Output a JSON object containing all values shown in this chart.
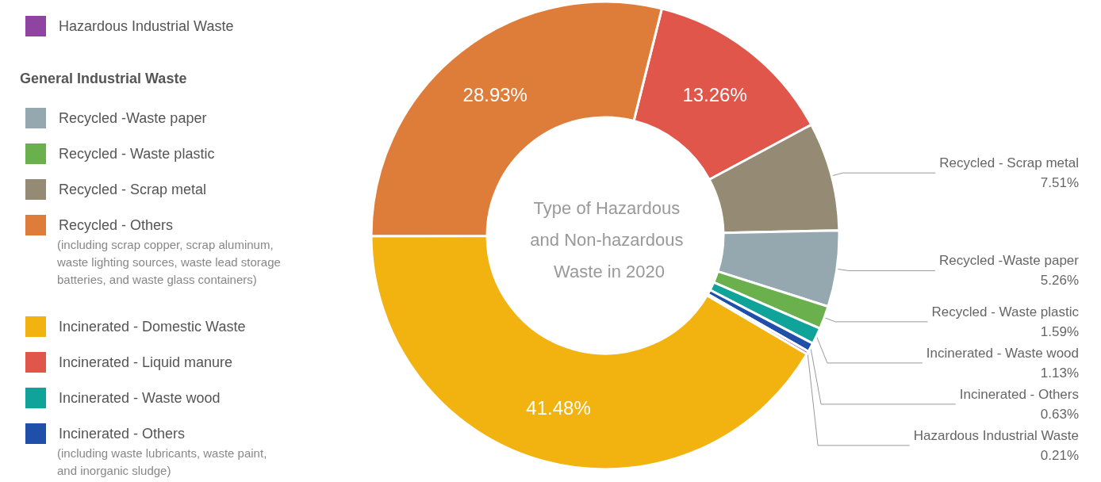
{
  "chart_data": {
    "type": "donut",
    "title": "Type of Hazardous and Non-hazardous Waste in 2020",
    "legend_title": "General Industrial Waste",
    "categories": [
      "Incinerated - Liquid manure",
      "Recycled - Scrap metal",
      "Recycled -Waste paper",
      "Recycled - Waste plastic",
      "Incinerated - Waste wood",
      "Incinerated - Others",
      "Hazardous Industrial Waste",
      "Incinerated - Domestic Waste",
      "Recycled - Others"
    ],
    "values": [
      13.26,
      7.51,
      5.26,
      1.59,
      1.13,
      0.63,
      0.21,
      41.48,
      28.93
    ],
    "colors": [
      "#e0564b",
      "#958a74",
      "#95a8b0",
      "#6ab04c",
      "#0fa39a",
      "#1f4fa8",
      "#8e44a0",
      "#f2b20f",
      "#de7d3a"
    ],
    "value_labels": [
      "13.26%",
      "7.51%",
      "5.26%",
      "1.59%",
      "1.13%",
      "0.63%",
      "0.21%",
      "41.48%",
      "28.93%"
    ],
    "legend": "left",
    "annotations": [
      "(including scrap copper, scrap aluminum, waste lighting sources, waste lead storage batteries, and waste glass containers)",
      "(including waste lubricants, waste paint, and inorganic sludge)"
    ]
  }
}
